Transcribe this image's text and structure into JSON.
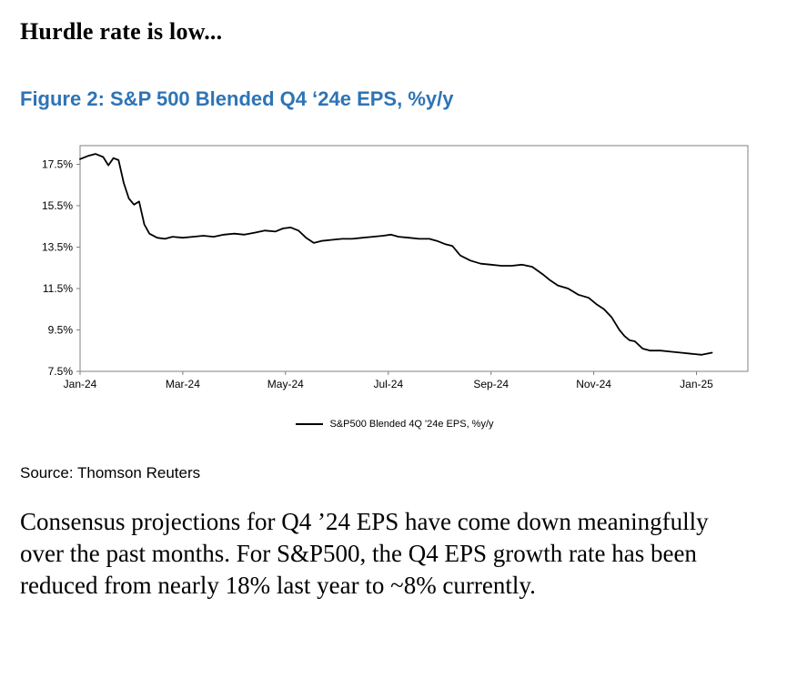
{
  "page": {
    "heading": "Hurdle rate is low...",
    "figure_title": "Figure 2: S&P 500 Blended Q4 ‘24e EPS, %y/y",
    "source": "Source: Thomson Reuters",
    "paragraph": "Consensus projections for Q4 ’24 EPS have come down meaningfully over the past months. For S&P500, the Q4 EPS growth rate has been reduced from nearly 18% last year to ~8% currently."
  },
  "colors": {
    "figure_title_blue": "#2e74b5",
    "line_black": "#000000",
    "axis_gray": "#808080"
  },
  "chart_data": {
    "type": "line",
    "title": "Figure 2: S&P 500 Blended Q4 ‘24e EPS, %y/y",
    "legend": "S&P500 Blended 4Q '24e EPS, %y/y",
    "legend_position": "bottom",
    "grid": false,
    "x_unit": "months since Jan-2024",
    "y_unit": "percent year-over-year",
    "xlim": [
      0,
      13
    ],
    "ylim": [
      7.5,
      18.4
    ],
    "x_ticks": [
      {
        "value": 0,
        "label": "Jan-24"
      },
      {
        "value": 2,
        "label": "Mar-24"
      },
      {
        "value": 4,
        "label": "May-24"
      },
      {
        "value": 6,
        "label": "Jul-24"
      },
      {
        "value": 8,
        "label": "Sep-24"
      },
      {
        "value": 10,
        "label": "Nov-24"
      },
      {
        "value": 12,
        "label": "Jan-25"
      }
    ],
    "y_ticks": [
      {
        "value": 7.5,
        "label": "7.5%"
      },
      {
        "value": 9.5,
        "label": "9.5%"
      },
      {
        "value": 11.5,
        "label": "11.5%"
      },
      {
        "value": 13.5,
        "label": "13.5%"
      },
      {
        "value": 15.5,
        "label": "15.5%"
      },
      {
        "value": 17.5,
        "label": "17.5%"
      }
    ],
    "series": [
      {
        "name": "S&P500 Blended 4Q '24e EPS, %y/y",
        "x": [
          0,
          0.15,
          0.3,
          0.45,
          0.55,
          0.65,
          0.75,
          0.85,
          0.95,
          1.05,
          1.15,
          1.25,
          1.35,
          1.5,
          1.65,
          1.8,
          2.0,
          2.2,
          2.4,
          2.6,
          2.8,
          3.0,
          3.2,
          3.4,
          3.6,
          3.8,
          3.95,
          4.1,
          4.25,
          4.4,
          4.55,
          4.7,
          4.9,
          5.1,
          5.3,
          5.5,
          5.7,
          5.9,
          6.05,
          6.2,
          6.4,
          6.6,
          6.8,
          6.95,
          7.1,
          7.25,
          7.4,
          7.6,
          7.8,
          8.0,
          8.2,
          8.4,
          8.6,
          8.8,
          9.0,
          9.15,
          9.3,
          9.5,
          9.7,
          9.9,
          10.05,
          10.2,
          10.35,
          10.5,
          10.6,
          10.7,
          10.8,
          10.95,
          11.1,
          11.3,
          11.5,
          11.7,
          11.9,
          12.1,
          12.3
        ],
        "y": [
          17.75,
          17.9,
          18.0,
          17.85,
          17.45,
          17.8,
          17.7,
          16.6,
          15.85,
          15.55,
          15.7,
          14.6,
          14.15,
          13.95,
          13.9,
          14.0,
          13.95,
          14.0,
          14.05,
          14.0,
          14.1,
          14.15,
          14.1,
          14.2,
          14.3,
          14.25,
          14.4,
          14.45,
          14.3,
          13.95,
          13.7,
          13.8,
          13.85,
          13.9,
          13.9,
          13.95,
          14.0,
          14.05,
          14.1,
          14.0,
          13.95,
          13.9,
          13.9,
          13.8,
          13.65,
          13.55,
          13.1,
          12.85,
          12.7,
          12.65,
          12.6,
          12.6,
          12.65,
          12.55,
          12.2,
          11.9,
          11.65,
          11.5,
          11.2,
          11.05,
          10.75,
          10.5,
          10.1,
          9.5,
          9.2,
          9.0,
          8.95,
          8.6,
          8.5,
          8.5,
          8.45,
          8.4,
          8.35,
          8.3,
          8.4
        ]
      }
    ]
  }
}
